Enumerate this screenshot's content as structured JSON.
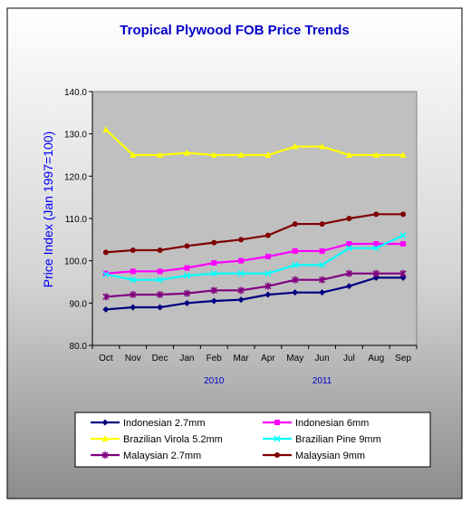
{
  "chart_data": {
    "type": "line",
    "title": "Tropical Plywood FOB Price Trends",
    "ylabel": "Price Index (Jan 1997=100)",
    "xlabel": "",
    "categories": [
      "Oct",
      "Nov",
      "Dec",
      "Jan",
      "Feb",
      "Mar",
      "Apr",
      "May",
      "Jun",
      "Jul",
      "Aug",
      "Sep"
    ],
    "year_labels": [
      {
        "label": "2010",
        "category": "Feb"
      },
      {
        "label": "2011",
        "category": "Jun"
      }
    ],
    "ylim": [
      80,
      140
    ],
    "yticks": [
      "80.0",
      "90.0",
      "100.0",
      "110.0",
      "120.0",
      "130.0",
      "140.0"
    ],
    "grid": false,
    "legend_position": "bottom",
    "series": [
      {
        "name": "Indonesian 2.7mm",
        "color": "#000080",
        "marker": "diamond",
        "values": [
          88.5,
          89.0,
          89.0,
          90.0,
          90.5,
          90.8,
          92.0,
          92.5,
          92.5,
          94.0,
          96.0,
          96.0
        ]
      },
      {
        "name": "Indonesian 6mm",
        "color": "#FF00FF",
        "marker": "square",
        "values": [
          97.0,
          97.5,
          97.5,
          98.3,
          99.5,
          100.0,
          101.0,
          102.3,
          102.3,
          104.0,
          104.0,
          104.0
        ]
      },
      {
        "name": "Brazilian Virola 5.2mm",
        "color": "#FFFF00",
        "marker": "triangle",
        "values": [
          131.0,
          125.0,
          125.0,
          125.5,
          125.0,
          125.0,
          125.0,
          127.0,
          127.0,
          125.0,
          125.0,
          125.0
        ]
      },
      {
        "name": "Brazilian Pine 9mm",
        "color": "#00FFFF",
        "marker": "x",
        "values": [
          96.8,
          95.5,
          95.5,
          96.5,
          97.0,
          97.0,
          97.0,
          99.0,
          99.0,
          103.0,
          103.0,
          106.0
        ]
      },
      {
        "name": "Malaysian 2.7mm",
        "color": "#800080",
        "marker": "star",
        "values": [
          91.5,
          92.0,
          92.0,
          92.3,
          93.0,
          93.0,
          94.0,
          95.5,
          95.5,
          97.0,
          97.0,
          97.0
        ]
      },
      {
        "name": "Malaysian 9mm",
        "color": "#800000",
        "marker": "circle",
        "values": [
          102.0,
          102.5,
          102.5,
          103.5,
          104.3,
          105.0,
          106.0,
          108.7,
          108.7,
          110.0,
          111.0,
          111.0
        ]
      }
    ]
  }
}
